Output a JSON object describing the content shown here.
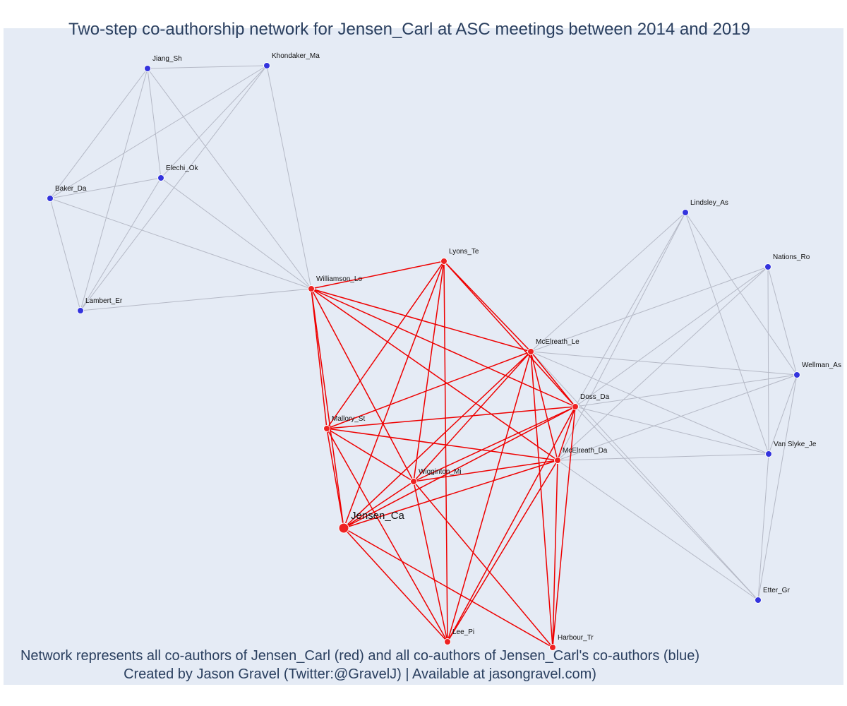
{
  "title": "Two-step co-authorship network for Jensen_Carl at ASC meetings between 2014 and 2019",
  "caption_line1": "Network represents all co-authors of Jensen_Carl (red) and all co-authors of Jensen_Carl's co-authors (blue)",
  "caption_line2": "Created by Jason Gravel (Twitter:@GravelJ) | Available at jasongravel.com)",
  "colors": {
    "background": "#e5ebf5",
    "red_node": "#ee2222",
    "red_edge": "#ee0000",
    "blue_node": "#3333dd",
    "grey_edge": "#b5b9c6",
    "text": "#2a3f5f"
  },
  "nodes": [
    {
      "id": "Jiang_Sh",
      "label": "Jiang_Sh",
      "group": "blue"
    },
    {
      "id": "Khondaker_Ma",
      "label": "Khondaker_Ma",
      "group": "blue"
    },
    {
      "id": "Elechi_Ok",
      "label": "Elechi_Ok",
      "group": "blue"
    },
    {
      "id": "Baker_Da",
      "label": "Baker_Da",
      "group": "blue"
    },
    {
      "id": "Lambert_Er",
      "label": "Lambert_Er",
      "group": "blue"
    },
    {
      "id": "Williamson_Lo",
      "label": "Williamson_Lo",
      "group": "red"
    },
    {
      "id": "Lyons_Te",
      "label": "Lyons_Te",
      "group": "red"
    },
    {
      "id": "McElreath_Le",
      "label": "McElreath_Le",
      "group": "red"
    },
    {
      "id": "Doss_Da",
      "label": "Doss_Da",
      "group": "red"
    },
    {
      "id": "Mallory_St",
      "label": "Mallory_St",
      "group": "red"
    },
    {
      "id": "McElreath_Da",
      "label": "McElreath_Da",
      "group": "red"
    },
    {
      "id": "Wigginton_Mi",
      "label": "Wigginton_Mi",
      "group": "red"
    },
    {
      "id": "Jensen_Ca",
      "label": "Jensen_Ca",
      "group": "red",
      "focal": true
    },
    {
      "id": "Lee_Pi",
      "label": "Lee_Pi",
      "group": "red"
    },
    {
      "id": "Harbour_Tr",
      "label": "Harbour_Tr",
      "group": "red"
    },
    {
      "id": "Lindsley_As",
      "label": "Lindsley_As",
      "group": "blue"
    },
    {
      "id": "Nations_Ro",
      "label": "Nations_Ro",
      "group": "blue"
    },
    {
      "id": "Wellman_As",
      "label": "Wellman_As",
      "group": "blue"
    },
    {
      "id": "Van_Slyke_Je",
      "label": "Van Slyke_Je",
      "group": "blue"
    },
    {
      "id": "Etter_Gr",
      "label": "Etter_Gr",
      "group": "blue"
    }
  ],
  "edges": [
    [
      "Jiang_Sh",
      "Khondaker_Ma"
    ],
    [
      "Jiang_Sh",
      "Elechi_Ok"
    ],
    [
      "Jiang_Sh",
      "Baker_Da"
    ],
    [
      "Jiang_Sh",
      "Lambert_Er"
    ],
    [
      "Jiang_Sh",
      "Williamson_Lo"
    ],
    [
      "Khondaker_Ma",
      "Elechi_Ok"
    ],
    [
      "Khondaker_Ma",
      "Baker_Da"
    ],
    [
      "Khondaker_Ma",
      "Lambert_Er"
    ],
    [
      "Khondaker_Ma",
      "Williamson_Lo"
    ],
    [
      "Elechi_Ok",
      "Baker_Da"
    ],
    [
      "Elechi_Ok",
      "Lambert_Er"
    ],
    [
      "Elechi_Ok",
      "Williamson_Lo"
    ],
    [
      "Baker_Da",
      "Lambert_Er"
    ],
    [
      "Baker_Da",
      "Williamson_Lo"
    ],
    [
      "Lambert_Er",
      "Williamson_Lo"
    ],
    [
      "Lindsley_As",
      "McElreath_Le"
    ],
    [
      "Lindsley_As",
      "Doss_Da"
    ],
    [
      "Lindsley_As",
      "McElreath_Da"
    ],
    [
      "Lindsley_As",
      "Wellman_As"
    ],
    [
      "Lindsley_As",
      "Van_Slyke_Je"
    ],
    [
      "Nations_Ro",
      "McElreath_Le"
    ],
    [
      "Nations_Ro",
      "Doss_Da"
    ],
    [
      "Nations_Ro",
      "McElreath_Da"
    ],
    [
      "Nations_Ro",
      "Wellman_As"
    ],
    [
      "Nations_Ro",
      "Van_Slyke_Je"
    ],
    [
      "Wellman_As",
      "McElreath_Le"
    ],
    [
      "Wellman_As",
      "Doss_Da"
    ],
    [
      "Wellman_As",
      "McElreath_Da"
    ],
    [
      "Wellman_As",
      "Van_Slyke_Je"
    ],
    [
      "Wellman_As",
      "Etter_Gr"
    ],
    [
      "Van_Slyke_Je",
      "McElreath_Le"
    ],
    [
      "Van_Slyke_Je",
      "Doss_Da"
    ],
    [
      "Van_Slyke_Je",
      "McElreath_Da"
    ],
    [
      "Van_Slyke_Je",
      "Etter_Gr"
    ],
    [
      "Etter_Gr",
      "Doss_Da"
    ],
    [
      "Etter_Gr",
      "McElreath_Da"
    ],
    [
      "Etter_Gr",
      "McElreath_Le"
    ],
    [
      "Williamson_Lo",
      "Lyons_Te"
    ],
    [
      "Williamson_Lo",
      "McElreath_Le"
    ],
    [
      "Williamson_Lo",
      "Doss_Da"
    ],
    [
      "Williamson_Lo",
      "Mallory_St"
    ],
    [
      "Williamson_Lo",
      "McElreath_Da"
    ],
    [
      "Williamson_Lo",
      "Wigginton_Mi"
    ],
    [
      "Williamson_Lo",
      "Jensen_Ca"
    ],
    [
      "Lyons_Te",
      "McElreath_Le"
    ],
    [
      "Lyons_Te",
      "Doss_Da"
    ],
    [
      "Lyons_Te",
      "Mallory_St"
    ],
    [
      "Lyons_Te",
      "Wigginton_Mi"
    ],
    [
      "Lyons_Te",
      "Jensen_Ca"
    ],
    [
      "Lyons_Te",
      "Lee_Pi"
    ],
    [
      "McElreath_Le",
      "Doss_Da"
    ],
    [
      "McElreath_Le",
      "Mallory_St"
    ],
    [
      "McElreath_Le",
      "McElreath_Da"
    ],
    [
      "McElreath_Le",
      "Wigginton_Mi"
    ],
    [
      "McElreath_Le",
      "Jensen_Ca"
    ],
    [
      "McElreath_Le",
      "Lee_Pi"
    ],
    [
      "McElreath_Le",
      "Harbour_Tr"
    ],
    [
      "Doss_Da",
      "Mallory_St"
    ],
    [
      "Doss_Da",
      "McElreath_Da"
    ],
    [
      "Doss_Da",
      "Wigginton_Mi"
    ],
    [
      "Doss_Da",
      "Jensen_Ca"
    ],
    [
      "Doss_Da",
      "Lee_Pi"
    ],
    [
      "Doss_Da",
      "Harbour_Tr"
    ],
    [
      "Mallory_St",
      "McElreath_Da"
    ],
    [
      "Mallory_St",
      "Wigginton_Mi"
    ],
    [
      "Mallory_St",
      "Jensen_Ca"
    ],
    [
      "Mallory_St",
      "Lee_Pi"
    ],
    [
      "McElreath_Da",
      "Wigginton_Mi"
    ],
    [
      "McElreath_Da",
      "Jensen_Ca"
    ],
    [
      "McElreath_Da",
      "Lee_Pi"
    ],
    [
      "McElreath_Da",
      "Harbour_Tr"
    ],
    [
      "Wigginton_Mi",
      "Jensen_Ca"
    ],
    [
      "Wigginton_Mi",
      "Lee_Pi"
    ],
    [
      "Wigginton_Mi",
      "Harbour_Tr"
    ],
    [
      "Jensen_Ca",
      "Lee_Pi"
    ],
    [
      "Jensen_Ca",
      "Harbour_Tr"
    ]
  ]
}
